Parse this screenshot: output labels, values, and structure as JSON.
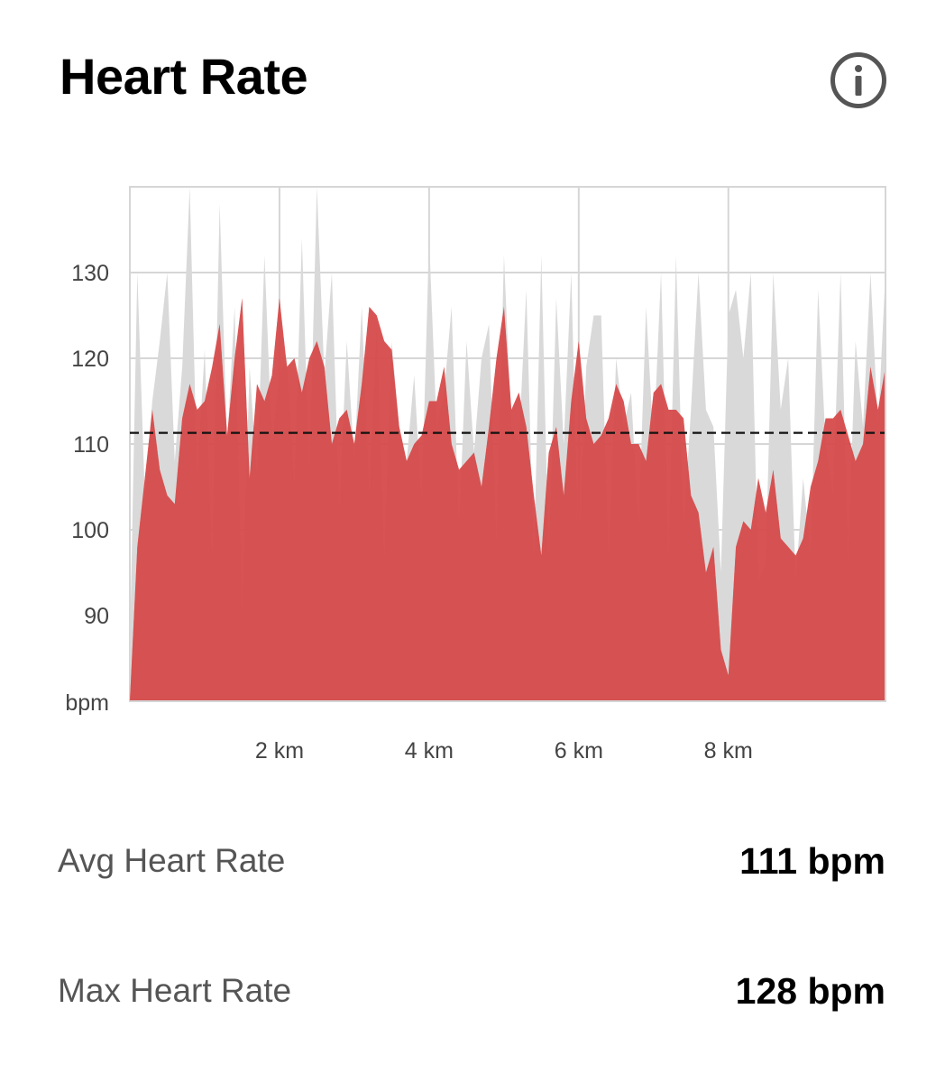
{
  "header": {
    "title": "Heart Rate",
    "info_icon": "info-circle-icon"
  },
  "colors": {
    "primary_fill": "#d44a4a",
    "primary_highlight": "#ea4444",
    "secondary_fill": "#d9d9d9",
    "grid": "#d6d6d6",
    "average_line": "#111111"
  },
  "chart_data": {
    "type": "area",
    "unit_label": "bpm",
    "xlabel": "",
    "ylabel": "bpm",
    "x_unit": "km",
    "xlim": [
      0,
      10.1
    ],
    "ylim": [
      80,
      140
    ],
    "y_ticks": [
      90,
      100,
      110,
      120,
      130
    ],
    "x_ticks": [
      {
        "value": 2,
        "label": "2 km"
      },
      {
        "value": 4,
        "label": "4 km"
      },
      {
        "value": 6,
        "label": "6 km"
      },
      {
        "value": 8,
        "label": "8 km"
      }
    ],
    "grid": true,
    "average": 111.3,
    "series": [
      {
        "role": "secondary",
        "x": [
          0,
          0.1,
          0.2,
          0.3,
          0.4,
          0.5,
          0.6,
          0.7,
          0.8,
          0.9,
          1.0,
          1.1,
          1.2,
          1.3,
          1.4,
          1.5,
          1.6,
          1.7,
          1.8,
          1.9,
          2.0,
          2.1,
          2.2,
          2.3,
          2.4,
          2.5,
          2.6,
          2.7,
          2.8,
          2.9,
          3.0,
          3.1,
          3.2,
          3.3,
          3.4,
          3.5,
          3.6,
          3.7,
          3.8,
          3.9,
          4.0,
          4.1,
          4.2,
          4.3,
          4.4,
          4.5,
          4.6,
          4.7,
          4.8,
          4.9,
          5.0,
          5.1,
          5.2,
          5.3,
          5.4,
          5.5,
          5.6,
          5.7,
          5.8,
          5.9,
          6.0,
          6.1,
          6.2,
          6.3,
          6.4,
          6.5,
          6.6,
          6.7,
          6.8,
          6.9,
          7.0,
          7.1,
          7.2,
          7.3,
          7.4,
          7.5,
          7.6,
          7.7,
          7.8,
          7.9,
          8.0,
          8.1,
          8.2,
          8.3,
          8.4,
          8.5,
          8.6,
          8.7,
          8.8,
          8.9,
          9.0,
          9.1,
          9.2,
          9.3,
          9.4,
          9.5,
          9.6,
          9.7,
          9.8,
          9.9,
          10.0,
          10.1
        ],
        "values": [
          86,
          130,
          104,
          115,
          122,
          130,
          108,
          119,
          140,
          106,
          121,
          96,
          138,
          110,
          126,
          90,
          119,
          106,
          132,
          110,
          118,
          120,
          105,
          134,
          106,
          140,
          118,
          130,
          102,
          122,
          108,
          126,
          104,
          124,
          96,
          122,
          112,
          108,
          118,
          103,
          134,
          112,
          116,
          126,
          100,
          122,
          109,
          120,
          124,
          98,
          132,
          112,
          110,
          128,
          96,
          132,
          96,
          127,
          110,
          130,
          96,
          119,
          125,
          125,
          96,
          120,
          112,
          116,
          100,
          126,
          110,
          130,
          96,
          132,
          100,
          114,
          130,
          114,
          112,
          95,
          125,
          128,
          120,
          130,
          94,
          96,
          130,
          114,
          120,
          94,
          106,
          97,
          128,
          110,
          104,
          130,
          96,
          122,
          112,
          130,
          112,
          130
        ]
      },
      {
        "role": "primary",
        "x": [
          0,
          0.1,
          0.2,
          0.3,
          0.4,
          0.5,
          0.6,
          0.7,
          0.8,
          0.9,
          1.0,
          1.1,
          1.2,
          1.3,
          1.4,
          1.5,
          1.6,
          1.7,
          1.8,
          1.9,
          2.0,
          2.1,
          2.2,
          2.3,
          2.4,
          2.5,
          2.6,
          2.7,
          2.8,
          2.9,
          3.0,
          3.1,
          3.2,
          3.3,
          3.4,
          3.5,
          3.6,
          3.7,
          3.8,
          3.9,
          4.0,
          4.1,
          4.2,
          4.3,
          4.4,
          4.5,
          4.6,
          4.7,
          4.8,
          4.9,
          5.0,
          5.1,
          5.2,
          5.3,
          5.4,
          5.5,
          5.6,
          5.7,
          5.8,
          5.9,
          6.0,
          6.1,
          6.2,
          6.3,
          6.4,
          6.5,
          6.6,
          6.7,
          6.8,
          6.9,
          7.0,
          7.1,
          7.2,
          7.3,
          7.4,
          7.5,
          7.6,
          7.7,
          7.8,
          7.9,
          8.0,
          8.1,
          8.2,
          8.3,
          8.4,
          8.5,
          8.6,
          8.7,
          8.8,
          8.9,
          9.0,
          9.1,
          9.2,
          9.3,
          9.4,
          9.5,
          9.6,
          9.7,
          9.8,
          9.9,
          10.0,
          10.1
        ],
        "values": [
          80,
          98,
          106,
          114,
          107,
          104,
          103,
          113,
          117,
          114,
          115,
          119,
          124,
          111,
          120,
          127,
          106,
          117,
          115,
          118,
          127,
          119,
          120,
          116,
          120,
          122,
          119,
          110,
          113,
          114,
          110,
          117,
          126,
          125,
          122,
          121,
          112,
          108,
          110,
          111,
          115,
          115,
          119,
          110,
          107,
          108,
          109,
          105,
          112,
          120,
          126,
          114,
          116,
          112,
          104,
          97,
          109,
          112,
          104,
          115,
          122,
          113,
          110,
          111,
          113,
          117,
          115,
          110,
          110,
          108,
          116,
          117,
          114,
          114,
          113,
          104,
          102,
          95,
          98,
          86,
          83,
          98,
          101,
          100,
          106,
          102,
          107,
          99,
          98,
          97,
          99,
          105,
          108,
          113,
          113,
          114,
          111,
          108,
          110,
          119,
          114,
          119
        ]
      }
    ]
  },
  "stats": [
    {
      "label": "Avg Heart Rate",
      "value": "111 bpm"
    },
    {
      "label": "Max Heart Rate",
      "value": "128 bpm"
    }
  ]
}
